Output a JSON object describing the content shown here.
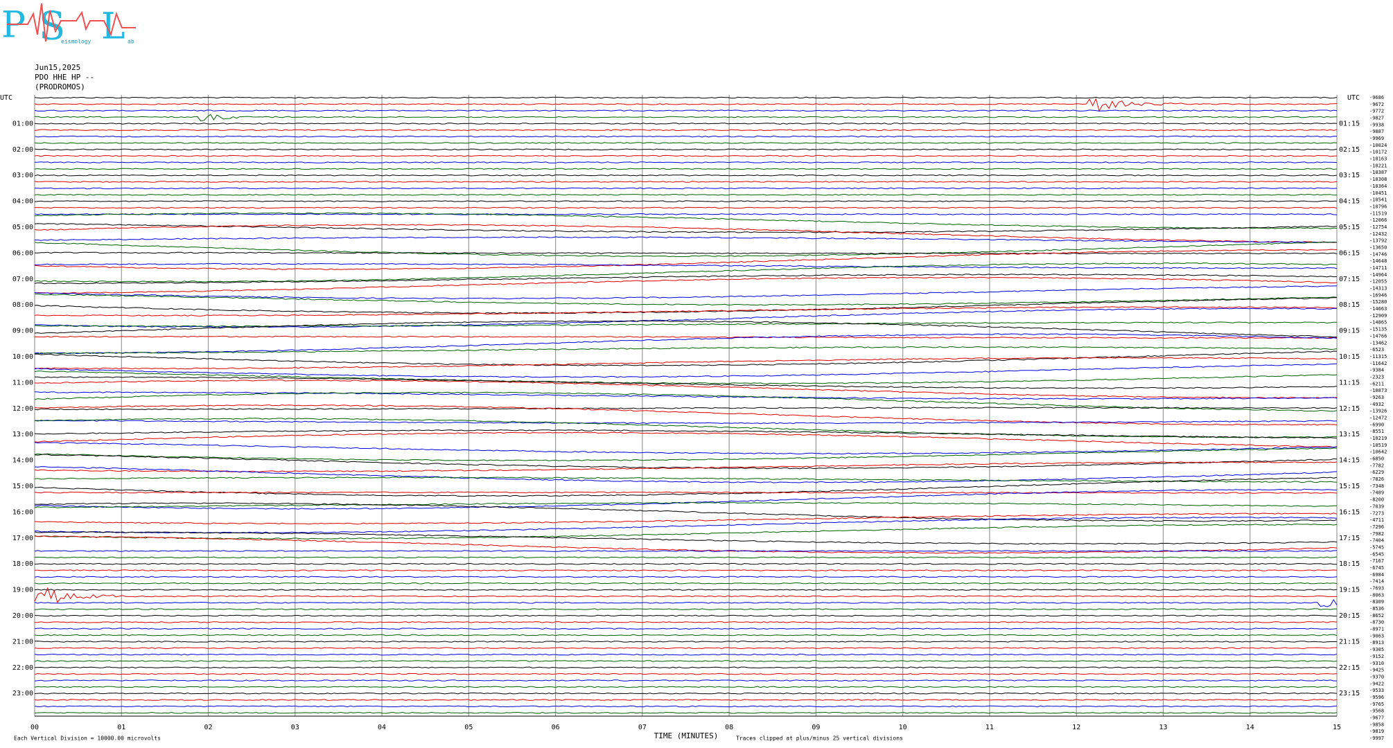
{
  "header": {
    "logo": [
      "P",
      "S",
      "L"
    ],
    "logo_sub": [
      "eismology",
      "ab"
    ],
    "date": "Jun15,2025",
    "station": "PDO HHE HP --",
    "site": "(PRODROMOS)"
  },
  "left_axis": {
    "title": "UTC",
    "labels": [
      "01:00",
      "02:00",
      "03:00",
      "04:00",
      "05:00",
      "06:00",
      "07:00",
      "08:00",
      "09:00",
      "10:00",
      "11:00",
      "12:00",
      "13:00",
      "14:00",
      "15:00",
      "16:00",
      "17:00",
      "18:00",
      "19:00",
      "20:00",
      "21:00",
      "22:00",
      "23:00"
    ]
  },
  "right_axis": {
    "title": "UTC",
    "labels": [
      "01:15",
      "02:15",
      "03:15",
      "04:15",
      "05:15",
      "06:15",
      "07:15",
      "08:15",
      "09:15",
      "10:15",
      "11:15",
      "12:15",
      "13:15",
      "14:15",
      "15:15",
      "16:15",
      "17:15",
      "18:15",
      "19:15",
      "20:15",
      "21:15",
      "22:15",
      "23:15"
    ],
    "offsets": [
      -9686,
      -9672,
      -9772,
      -9827,
      -9938,
      -9887,
      -9969,
      -10024,
      -10172,
      -10163,
      -10221,
      -10387,
      -10308,
      -10364,
      -10451,
      -10541,
      -10796,
      -11519,
      -12066,
      -12754,
      -12432,
      -13792,
      -13650,
      -14746,
      -14648,
      -14711,
      -14964,
      -12055,
      -14313,
      -16946,
      -15280,
      -14663,
      -12909,
      -14865,
      -15135,
      -14766,
      -13462,
      -6523,
      -11315,
      -11642,
      -9384,
      -2323,
      -6211,
      -10873,
      -9263,
      -4932,
      -13926,
      -12472,
      -6990,
      -8551,
      -10219,
      -10519,
      -10642,
      -6850,
      -7782,
      -6229,
      -7826,
      -7348,
      -7489,
      -8200,
      -7039,
      -7273,
      -4711,
      -7296,
      -7982,
      -7404,
      -5745,
      -6545,
      -7167,
      -6745,
      -6984,
      -7414,
      -7693,
      -8063,
      -8309,
      -8536,
      -8652,
      -8730,
      -8971,
      -9063,
      -8913,
      -9305,
      -9152,
      -9310,
      -9425,
      -9370,
      -9422,
      -9533,
      -9596,
      -9765,
      -9568,
      -9677,
      -9858,
      -9819,
      -9997
    ]
  },
  "x_axis": {
    "title": "TIME (MINUTES)",
    "ticks": [
      {
        "value": 0,
        "label": "00"
      },
      {
        "value": 1,
        "label": "01"
      },
      {
        "value": 2,
        "label": "02"
      },
      {
        "value": 3,
        "label": "03"
      },
      {
        "value": 4,
        "label": "04"
      },
      {
        "value": 5,
        "label": "05"
      },
      {
        "value": 6,
        "label": "06"
      },
      {
        "value": 7,
        "label": "07"
      },
      {
        "value": 8,
        "label": "08"
      },
      {
        "value": 9,
        "label": "09"
      },
      {
        "value": 10,
        "label": "10"
      },
      {
        "value": 11,
        "label": "11"
      },
      {
        "value": 12,
        "label": "12"
      },
      {
        "value": 13,
        "label": "13"
      },
      {
        "value": 14,
        "label": "14"
      },
      {
        "value": 15,
        "label": "15"
      }
    ]
  },
  "footer": {
    "scale": "Each Vertical Division = 10000.00 microvolts",
    "clip": "Traces clipped at plus/minus 25 vertical divisions"
  },
  "trace_colors": [
    "#000000",
    "#e00000",
    "#0000e0",
    "#006000"
  ]
}
